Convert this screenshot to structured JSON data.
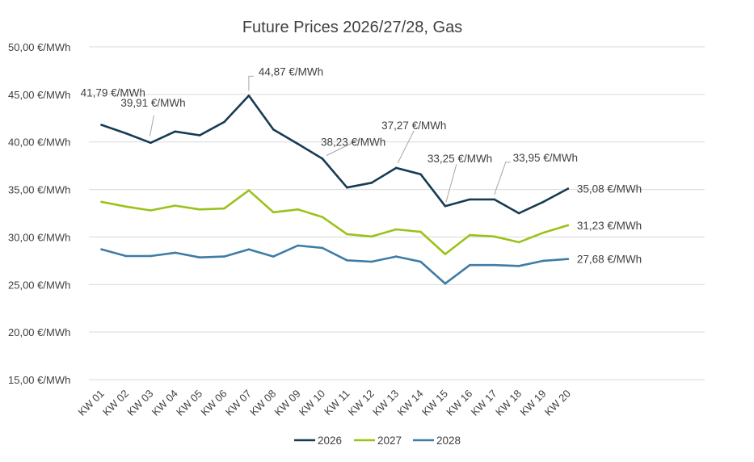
{
  "chart_data": {
    "type": "line",
    "title": "Future Prices 2026/27/28, Gas",
    "categories": [
      "KW 01",
      "KW 02",
      "KW 03",
      "KW 04",
      "KW 05",
      "KW 06",
      "KW 07",
      "KW 08",
      "KW 09",
      "KW 10",
      "KW 11",
      "KW 12",
      "KW 13",
      "KW 14",
      "KW 15",
      "KW 16",
      "KW 17",
      "KW 18",
      "KW 19",
      "KW 20"
    ],
    "ylim": [
      15,
      50
    ],
    "yticks": [
      15,
      20,
      25,
      30,
      35,
      40,
      45,
      50
    ],
    "ytick_labels": [
      "15,00 €/MWh",
      "20,00 €/MWh",
      "25,00 €/MWh",
      "30,00 €/MWh",
      "35,00 €/MWh",
      "40,00 €/MWh",
      "45,00 €/MWh",
      "50,00 €/MWh"
    ],
    "grid": true,
    "legend_position": "bottom",
    "series": [
      {
        "name": "2026",
        "color": "#173b53",
        "values": [
          41.79,
          40.9,
          39.91,
          41.1,
          40.7,
          42.1,
          44.87,
          41.3,
          39.8,
          38.23,
          35.2,
          35.7,
          37.27,
          36.6,
          33.25,
          33.95,
          33.95,
          32.5,
          33.7,
          35.08
        ]
      },
      {
        "name": "2027",
        "color": "#9bc21a",
        "values": [
          33.7,
          33.2,
          32.8,
          33.3,
          32.9,
          33.0,
          34.9,
          32.6,
          32.9,
          32.1,
          30.3,
          30.05,
          30.8,
          30.55,
          28.2,
          30.2,
          30.05,
          29.45,
          30.45,
          31.23
        ]
      },
      {
        "name": "2028",
        "color": "#3f7ca6",
        "values": [
          28.7,
          28.0,
          28.0,
          28.35,
          27.85,
          27.95,
          28.7,
          27.95,
          29.1,
          28.85,
          27.55,
          27.4,
          27.95,
          27.4,
          25.1,
          27.05,
          27.05,
          26.95,
          27.5,
          27.68
        ]
      }
    ],
    "annotations": [
      {
        "series": 0,
        "index": 0,
        "text": "41,79 €/MWh"
      },
      {
        "series": 0,
        "index": 2,
        "text": "39,91 €/MWh"
      },
      {
        "series": 0,
        "index": 6,
        "text": "44,87 €/MWh"
      },
      {
        "series": 0,
        "index": 9,
        "text": "38,23 €/MWh"
      },
      {
        "series": 0,
        "index": 12,
        "text": "37,27 €/MWh"
      },
      {
        "series": 0,
        "index": 14,
        "text": "33,25 €/MWh"
      },
      {
        "series": 0,
        "index": 16,
        "text": "33,95 €/MWh"
      },
      {
        "series": 0,
        "index": 19,
        "text": "35,08 €/MWh"
      },
      {
        "series": 1,
        "index": 19,
        "text": "31,23 €/MWh"
      },
      {
        "series": 2,
        "index": 19,
        "text": "27,68 €/MWh"
      }
    ]
  }
}
